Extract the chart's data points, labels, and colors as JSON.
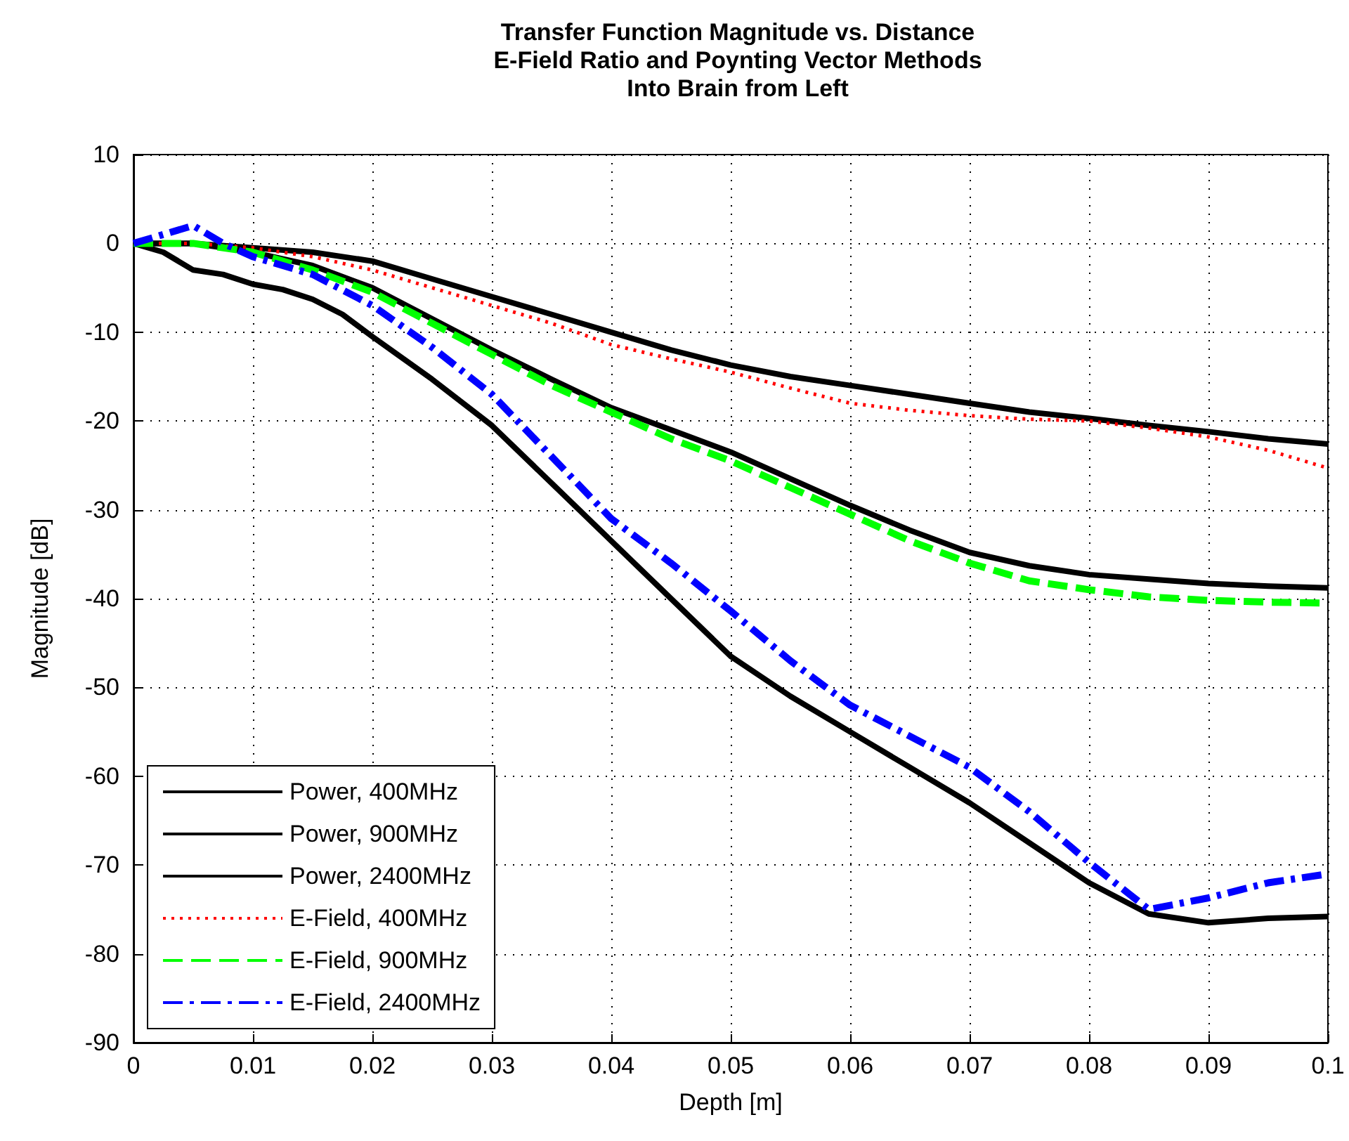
{
  "chart_data": {
    "type": "line",
    "title": "Transfer Function Magnitude vs. Distance\nE-Field Ratio and Poynting Vector Methods\nInto Brain from Left",
    "xlabel": "Depth [m]",
    "ylabel": "Magnitude [dB]",
    "x": [
      0,
      0.005,
      0.01,
      0.015,
      0.02,
      0.025,
      0.03,
      0.035,
      0.04,
      0.045,
      0.05,
      0.055,
      0.06,
      0.065,
      0.07,
      0.075,
      0.08,
      0.085,
      0.09,
      0.095,
      0.1
    ],
    "series": [
      {
        "name": "Power, 400MHz",
        "color": "#000000",
        "line_style": "solid",
        "values": [
          0,
          0,
          -0.5,
          -1,
          -2,
          -4,
          -6,
          -8,
          -10,
          -12,
          -13.7,
          -15,
          -16,
          -17,
          -18,
          -19,
          -19.7,
          -20.5,
          -21.2,
          -22,
          -22.6
        ]
      },
      {
        "name": "Power, 900MHz",
        "color": "#000000",
        "line_style": "solid",
        "values": [
          0,
          0,
          -1,
          -2.5,
          -5,
          -8.5,
          -12,
          -15.3,
          -18.5,
          -21,
          -23.5,
          -26.5,
          -29.5,
          -32.3,
          -34.8,
          -36.3,
          -37.3,
          -37.8,
          -38.3,
          -38.6,
          -38.8
        ]
      },
      {
        "name": "Power, 2400MHz",
        "color": "#000000",
        "line_style": "solid",
        "x": [
          0,
          0.0025,
          0.005,
          0.0075,
          0.01,
          0.0125,
          0.015,
          0.0175,
          0.02,
          0.025,
          0.03,
          0.035,
          0.04,
          0.045,
          0.05,
          0.055,
          0.06,
          0.065,
          0.07,
          0.075,
          0.08,
          0.085,
          0.09,
          0.095,
          0.1
        ],
        "values": [
          0,
          -1,
          -3,
          -3.5,
          -4.6,
          -5.2,
          -6.3,
          -8,
          -10.5,
          -15.3,
          -20.5,
          -27,
          -33.5,
          -40,
          -46.5,
          -51,
          -55,
          -59,
          -63,
          -67.5,
          -72,
          -75.5,
          -76.5,
          -76,
          -75.8
        ]
      },
      {
        "name": "E-Field, 400MHz",
        "color": "#ff0000",
        "line_style": "dotted",
        "values": [
          0,
          0,
          -0.5,
          -1.5,
          -3,
          -5,
          -7,
          -9,
          -11.4,
          -13,
          -14.5,
          -16.3,
          -18,
          -18.8,
          -19.4,
          -19.8,
          -20,
          -20.8,
          -21.8,
          -23.3,
          -25.3
        ]
      },
      {
        "name": "E-Field, 900MHz",
        "color": "#00ff00",
        "line_style": "dashed",
        "values": [
          0,
          0,
          -1,
          -3,
          -5.5,
          -9,
          -12.5,
          -16,
          -19,
          -22,
          -24.5,
          -27.5,
          -30.5,
          -33.5,
          -36,
          -38,
          -39,
          -39.8,
          -40.2,
          -40.4,
          -40.5
        ]
      },
      {
        "name": "E-Field, 2400MHz",
        "color": "#0000ff",
        "line_style": "dashdot",
        "x": [
          0,
          0.0025,
          0.005,
          0.0075,
          0.01,
          0.015,
          0.02,
          0.025,
          0.03,
          0.035,
          0.04,
          0.045,
          0.05,
          0.055,
          0.06,
          0.065,
          0.07,
          0.075,
          0.08,
          0.085,
          0.09,
          0.095,
          0.1
        ],
        "values": [
          0,
          1,
          2,
          0,
          -1.5,
          -3.5,
          -7,
          -11.7,
          -17,
          -24,
          -31,
          -36,
          -41.4,
          -47,
          -52,
          -55.5,
          -59,
          -64,
          -69.7,
          -75,
          -73.7,
          -72,
          -71
        ]
      }
    ],
    "xlim": [
      0,
      0.1
    ],
    "xticks": [
      0,
      0.01,
      0.02,
      0.03,
      0.04,
      0.05,
      0.06,
      0.07,
      0.08,
      0.09,
      0.1
    ],
    "ylim": [
      -90,
      10
    ],
    "yticks": [
      -90,
      -80,
      -70,
      -60,
      -50,
      -40,
      -30,
      -20,
      -10,
      0,
      10
    ],
    "grid": true,
    "legend": "bottom left",
    "marker": "none"
  }
}
